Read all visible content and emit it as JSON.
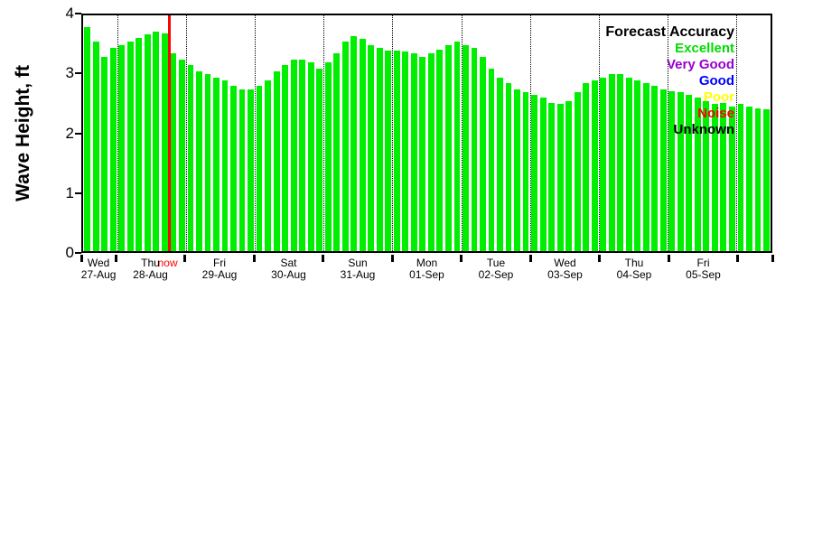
{
  "chart": {
    "ylabel": "Wave Height, ft",
    "bar_color": "#00ee00",
    "now_line_color": "#ff0000",
    "now_label": "now",
    "now_index": 10.0,
    "legend": {
      "title": "Forecast Accuracy",
      "items": [
        {
          "label": "Excellent",
          "color": "#00dd00"
        },
        {
          "label": "Very Good",
          "color": "#9900cc"
        },
        {
          "label": "Good",
          "color": "#0000ff"
        },
        {
          "label": "Poor",
          "color": "#ffff00"
        },
        {
          "label": "Noise",
          "color": "#ff0000"
        },
        {
          "label": "Unknown",
          "color": "#000000"
        }
      ]
    }
  },
  "chart_data": {
    "type": "bar",
    "title": "",
    "xlabel": "",
    "ylabel": "Wave Height, ft",
    "unit": "ft",
    "interval_hours": 3,
    "ylim": [
      0,
      4
    ],
    "yticks": [
      0,
      1,
      2,
      3,
      4
    ],
    "grid": "vertical-dotted-at-day-boundaries",
    "legend_position": "top-right-inside",
    "day_boundaries": [
      4,
      12,
      20,
      28,
      36,
      44,
      52,
      60,
      68,
      76
    ],
    "days": [
      {
        "name": "Wed",
        "date": "27-Aug",
        "start": 0,
        "end": 4
      },
      {
        "name": "Thu",
        "date": "28-Aug",
        "start": 4,
        "end": 12
      },
      {
        "name": "Fri",
        "date": "29-Aug",
        "start": 12,
        "end": 20
      },
      {
        "name": "Sat",
        "date": "30-Aug",
        "start": 20,
        "end": 28
      },
      {
        "name": "Sun",
        "date": "31-Aug",
        "start": 28,
        "end": 36
      },
      {
        "name": "Mon",
        "date": "01-Sep",
        "start": 36,
        "end": 44
      },
      {
        "name": "Tue",
        "date": "02-Sep",
        "start": 44,
        "end": 52
      },
      {
        "name": "Wed",
        "date": "03-Sep",
        "start": 52,
        "end": 60
      },
      {
        "name": "Thu",
        "date": "04-Sep",
        "start": 60,
        "end": 68
      },
      {
        "name": "Fri",
        "date": "05-Sep",
        "start": 68,
        "end": 76
      }
    ],
    "values": [
      3.8,
      3.55,
      3.3,
      3.45,
      3.5,
      3.55,
      3.62,
      3.68,
      3.73,
      3.7,
      3.35,
      3.25,
      3.15,
      3.05,
      3.0,
      2.95,
      2.9,
      2.8,
      2.75,
      2.75,
      2.8,
      2.9,
      3.05,
      3.15,
      3.25,
      3.25,
      3.2,
      3.1,
      3.2,
      3.35,
      3.55,
      3.65,
      3.6,
      3.5,
      3.45,
      3.4,
      3.4,
      3.38,
      3.35,
      3.3,
      3.35,
      3.42,
      3.5,
      3.55,
      3.5,
      3.45,
      3.3,
      3.1,
      2.95,
      2.85,
      2.75,
      2.7,
      2.65,
      2.6,
      2.52,
      2.5,
      2.55,
      2.7,
      2.85,
      2.9,
      2.95,
      3.0,
      3.0,
      2.95,
      2.9,
      2.85,
      2.8,
      2.75,
      2.72,
      2.7,
      2.65,
      2.6,
      2.55,
      2.5,
      2.52,
      2.45,
      2.5,
      2.45,
      2.42,
      2.4
    ]
  }
}
